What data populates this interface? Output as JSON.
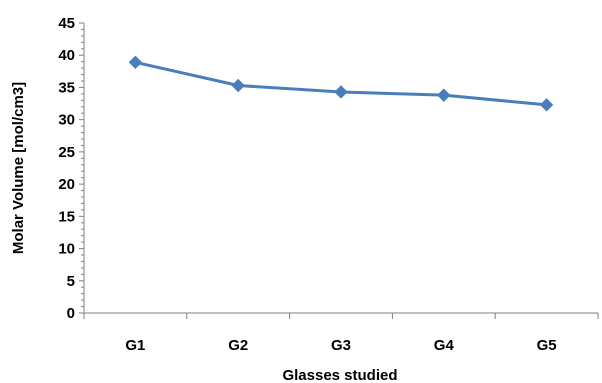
{
  "chart_data": {
    "type": "line",
    "categories": [
      "G1",
      "G2",
      "G3",
      "G4",
      "G5"
    ],
    "series": [
      {
        "values": [
          38.9,
          35.3,
          34.3,
          33.8,
          32.3
        ]
      }
    ],
    "xlabel": "Glasses studied",
    "ylabel": "Molar Volume [mol/cm3]",
    "ylim": [
      0,
      45
    ],
    "yticks": [
      "0",
      "5",
      "10",
      "15",
      "20",
      "25",
      "30",
      "35",
      "40",
      "45"
    ],
    "grid": false,
    "legend": "none",
    "line_color": "#4a7ebb",
    "marker": "diamond"
  }
}
